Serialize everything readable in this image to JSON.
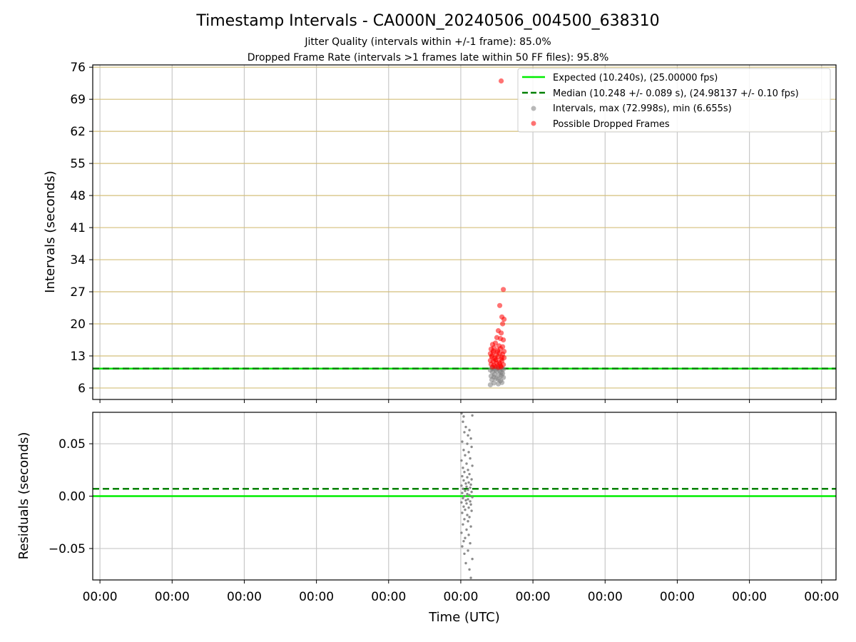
{
  "title": "Timestamp Intervals - CA000N_20240506_004500_638310",
  "subtitle_line1": "Jitter Quality (intervals within +/-1 frame): 85.0%",
  "subtitle_line2": "Dropped Frame Rate (intervals >1 frames late within 50 FF files): 95.8%",
  "colors": {
    "expected": "#00ee00",
    "median": "#008000",
    "intervals": "#808080",
    "dropped": "#ff0000",
    "grid_top": "#d4bf7a",
    "grid_bottom": "#c8c8c8"
  },
  "chart_data": [
    {
      "type": "scatter",
      "name": "intervals-panel",
      "title": "Timestamp Intervals - CA000N_20240506_004500_638310",
      "xlabel": "",
      "ylabel": "Intervals (seconds)",
      "xlim": [
        -5,
        98
      ],
      "ylim": [
        3.5,
        76.5
      ],
      "yticks": [
        6,
        13,
        20,
        27,
        34,
        41,
        48,
        55,
        62,
        69,
        76
      ],
      "grid": true,
      "legend_position": "top-right",
      "legend": [
        "Expected (10.240s), (25.00000 fps)",
        "Median (10.248 +/- 0.089 s), (24.98137 +/- 0.10 fps)",
        "Intervals, max (72.998s), min (6.655s)",
        "Possible Dropped Frames"
      ],
      "lines": [
        {
          "name": "Expected",
          "y": 10.24,
          "style": "solid"
        },
        {
          "name": "Median",
          "y": 10.248,
          "style": "dashed"
        }
      ],
      "series": [
        {
          "name": "Intervals",
          "points": [
            [
              50.1,
              6.7
            ],
            [
              50.6,
              7.1
            ],
            [
              51.2,
              6.9
            ],
            [
              51.7,
              7.2
            ],
            [
              50.3,
              7.8
            ],
            [
              50.9,
              8.1
            ],
            [
              51.5,
              7.6
            ],
            [
              51.9,
              8.3
            ],
            [
              50.2,
              8.6
            ],
            [
              50.7,
              9.0
            ],
            [
              51.3,
              8.8
            ],
            [
              51.8,
              9.2
            ],
            [
              50.4,
              9.5
            ],
            [
              51.0,
              9.7
            ],
            [
              51.6,
              9.4
            ],
            [
              50.1,
              9.9
            ],
            [
              50.8,
              10.0
            ],
            [
              51.4,
              9.8
            ],
            [
              51.9,
              10.1
            ],
            [
              50.5,
              10.2
            ],
            [
              51.1,
              10.3
            ],
            [
              51.7,
              10.2
            ],
            [
              50.3,
              10.4
            ],
            [
              50.9,
              10.5
            ],
            [
              51.5,
              10.4
            ],
            [
              50.6,
              8.4
            ],
            [
              51.2,
              7.9
            ],
            [
              51.6,
              8.7
            ]
          ]
        },
        {
          "name": "Possible Dropped Frames",
          "points": [
            [
              51.6,
              73.0
            ],
            [
              51.9,
              27.5
            ],
            [
              51.4,
              24.0
            ],
            [
              51.7,
              21.5
            ],
            [
              52.0,
              21.0
            ],
            [
              51.8,
              20.0
            ],
            [
              51.2,
              18.5
            ],
            [
              51.6,
              18.0
            ],
            [
              51.0,
              17.0
            ],
            [
              51.5,
              16.8
            ],
            [
              51.9,
              16.5
            ],
            [
              50.4,
              15.5
            ],
            [
              50.8,
              15.8
            ],
            [
              51.3,
              15.2
            ],
            [
              51.8,
              15.0
            ],
            [
              50.2,
              14.5
            ],
            [
              50.6,
              14.8
            ],
            [
              51.1,
              14.2
            ],
            [
              51.5,
              14.6
            ],
            [
              52.0,
              14.0
            ],
            [
              50.1,
              13.5
            ],
            [
              50.5,
              13.8
            ],
            [
              50.9,
              13.2
            ],
            [
              51.4,
              13.6
            ],
            [
              51.8,
              13.4
            ],
            [
              50.3,
              12.8
            ],
            [
              50.7,
              12.5
            ],
            [
              51.2,
              12.9
            ],
            [
              51.6,
              12.3
            ],
            [
              52.0,
              12.6
            ],
            [
              50.1,
              12.0
            ],
            [
              50.5,
              11.8
            ],
            [
              50.9,
              12.2
            ],
            [
              51.3,
              11.5
            ],
            [
              51.7,
              11.9
            ],
            [
              50.2,
              11.2
            ],
            [
              50.6,
              11.0
            ],
            [
              51.0,
              11.4
            ],
            [
              51.5,
              10.8
            ],
            [
              51.9,
              11.1
            ],
            [
              50.4,
              10.6
            ],
            [
              50.8,
              10.7
            ],
            [
              51.2,
              10.5
            ],
            [
              51.6,
              10.6
            ],
            [
              50.3,
              13.0
            ],
            [
              50.8,
              12.1
            ],
            [
              51.1,
              13.9
            ],
            [
              51.4,
              11.3
            ],
            [
              51.7,
              12.7
            ],
            [
              50.5,
              14.1
            ]
          ]
        }
      ]
    },
    {
      "type": "scatter",
      "name": "residuals-panel",
      "xlabel": "Time (UTC)",
      "ylabel": "Residuals (seconds)",
      "xlim": [
        -5,
        98
      ],
      "ylim": [
        -0.08,
        0.08
      ],
      "yticks": [
        0.05,
        0.0,
        -0.05
      ],
      "ytick_labels": [
        "0.05",
        "0.00",
        "−0.05"
      ],
      "xticks": [
        -4,
        6,
        16,
        26,
        36,
        46,
        56,
        66,
        76,
        86,
        96
      ],
      "xtick_labels": [
        "00:00",
        "00:00",
        "00:00",
        "00:00",
        "00:00",
        "00:00",
        "00:00",
        "00:00",
        "00:00",
        "00:00",
        "00:00"
      ],
      "grid": true,
      "lines": [
        {
          "name": "Expected",
          "y": 0.0,
          "style": "solid"
        },
        {
          "name": "Median",
          "y": 0.007,
          "style": "dashed"
        }
      ],
      "series": [
        {
          "name": "Residuals",
          "points": [
            [
              46.1,
              0.079
            ],
            [
              46.4,
              0.076
            ],
            [
              47.6,
              0.077
            ],
            [
              46.3,
              0.071
            ],
            [
              46.7,
              0.066
            ],
            [
              47.2,
              0.063
            ],
            [
              46.5,
              0.061
            ],
            [
              47.0,
              0.058
            ],
            [
              47.4,
              0.055
            ],
            [
              46.2,
              0.052
            ],
            [
              46.9,
              0.05
            ],
            [
              47.5,
              0.047
            ],
            [
              46.4,
              0.044
            ],
            [
              47.1,
              0.042
            ],
            [
              46.6,
              0.039
            ],
            [
              47.3,
              0.036
            ],
            [
              46.1,
              0.034
            ],
            [
              46.8,
              0.031
            ],
            [
              47.6,
              0.029
            ],
            [
              46.3,
              0.027
            ],
            [
              47.0,
              0.025
            ],
            [
              46.5,
              0.023
            ],
            [
              47.2,
              0.021
            ],
            [
              46.2,
              0.019
            ],
            [
              46.9,
              0.018
            ],
            [
              47.5,
              0.016
            ],
            [
              46.4,
              0.015
            ],
            [
              47.1,
              0.013
            ],
            [
              46.7,
              0.012
            ],
            [
              47.4,
              0.011
            ],
            [
              46.1,
              0.01
            ],
            [
              46.8,
              0.009
            ],
            [
              47.3,
              0.008
            ],
            [
              46.3,
              0.007
            ],
            [
              47.0,
              0.006
            ],
            [
              46.6,
              0.005
            ],
            [
              47.5,
              0.004
            ],
            [
              46.2,
              0.003
            ],
            [
              46.9,
              0.002
            ],
            [
              47.2,
              0.001
            ],
            [
              46.5,
              0.0
            ],
            [
              47.6,
              -0.001
            ],
            [
              46.3,
              -0.002
            ],
            [
              47.0,
              -0.003
            ],
            [
              46.7,
              -0.004
            ],
            [
              47.3,
              -0.005
            ],
            [
              46.1,
              -0.006
            ],
            [
              46.8,
              -0.007
            ],
            [
              47.4,
              -0.008
            ],
            [
              46.4,
              -0.01
            ],
            [
              47.1,
              -0.011
            ],
            [
              46.6,
              -0.013
            ],
            [
              47.5,
              -0.014
            ],
            [
              46.2,
              -0.016
            ],
            [
              46.9,
              -0.018
            ],
            [
              47.2,
              -0.02
            ],
            [
              46.5,
              -0.022
            ],
            [
              47.0,
              -0.024
            ],
            [
              46.3,
              -0.027
            ],
            [
              47.4,
              -0.029
            ],
            [
              46.8,
              -0.032
            ],
            [
              46.1,
              -0.035
            ],
            [
              47.1,
              -0.037
            ],
            [
              46.6,
              -0.04
            ],
            [
              46.4,
              -0.043
            ],
            [
              47.3,
              -0.045
            ],
            [
              46.2,
              -0.048
            ],
            [
              47.0,
              -0.052
            ],
            [
              46.5,
              -0.055
            ],
            [
              47.6,
              -0.06
            ],
            [
              46.7,
              -0.064
            ],
            [
              47.2,
              -0.07
            ],
            [
              47.4,
              -0.078
            ]
          ]
        }
      ]
    }
  ]
}
